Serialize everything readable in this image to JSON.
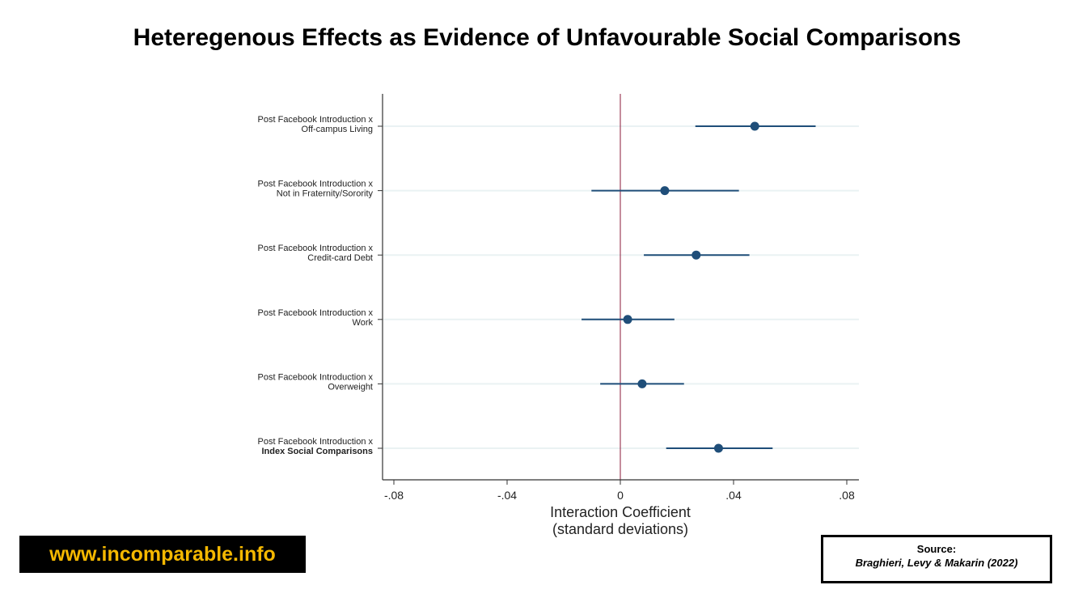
{
  "title": "Heteregenous Effects as Evidence of Unfavourable Social Comparisons",
  "website": "www.incomparable.info",
  "source": {
    "label": "Source:",
    "reference": "Braghieri, Levy & Makarin (2022)"
  },
  "colors": {
    "marker": "#1f4e79",
    "zero_line": "#8b1a3a",
    "grid": "#eaf2f3"
  },
  "chart_data": {
    "type": "scatter",
    "subtype": "coefficient-plot",
    "xlabel": [
      "Interaction Coefficient",
      "(standard deviations)"
    ],
    "xlim": [
      -0.082,
      0.085
    ],
    "xticks": [
      -0.08,
      -0.04,
      0,
      0.04,
      0.08
    ],
    "xtick_labels": [
      "-.08",
      "-.04",
      "0",
      ".04",
      ".08"
    ],
    "reference_line": 0,
    "series": [
      {
        "label": [
          "Post Facebook Introduction x",
          "Off-campus Living"
        ],
        "bold_second": false,
        "estimate": 0.0475,
        "ci_low": 0.0265,
        "ci_high": 0.069
      },
      {
        "label": [
          "Post Facebook Introduction x",
          "Not in Fraternity/Sorority"
        ],
        "bold_second": false,
        "estimate": 0.0157,
        "ci_low": -0.0102,
        "ci_high": 0.0419
      },
      {
        "label": [
          "Post Facebook Introduction x",
          "Credit-card Debt"
        ],
        "bold_second": false,
        "estimate": 0.0268,
        "ci_low": 0.0083,
        "ci_high": 0.0456
      },
      {
        "label": [
          "Post Facebook Introduction x",
          "Work"
        ],
        "bold_second": false,
        "estimate": 0.0026,
        "ci_low": -0.0137,
        "ci_high": 0.0191
      },
      {
        "label": [
          "Post Facebook Introduction x",
          "Overweight"
        ],
        "bold_second": false,
        "estimate": 0.0077,
        "ci_low": -0.0071,
        "ci_high": 0.0225
      },
      {
        "label": [
          "Post Facebook Introduction x",
          "Index Social Comparisons"
        ],
        "bold_second": true,
        "estimate": 0.0347,
        "ci_low": 0.0162,
        "ci_high": 0.0538
      }
    ]
  }
}
